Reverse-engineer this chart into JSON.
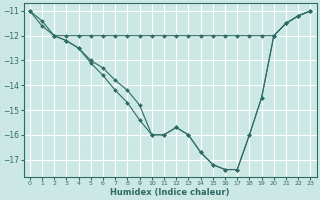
{
  "xlabel": "Humidex (Indice chaleur)",
  "ylabel": "",
  "bg_color": "#cce8e4",
  "grid_color": "#ffffff",
  "line_color": "#2e6b65",
  "xlim": [
    -0.5,
    23.5
  ],
  "ylim": [
    -17.7,
    -10.7
  ],
  "yticks": [
    -17,
    -16,
    -15,
    -14,
    -13,
    -12,
    -11
  ],
  "xticks": [
    0,
    1,
    2,
    3,
    4,
    5,
    6,
    7,
    8,
    9,
    10,
    11,
    12,
    13,
    14,
    15,
    16,
    17,
    18,
    19,
    20,
    21,
    22,
    23
  ],
  "line1_x": [
    0,
    1,
    2,
    3,
    4,
    5,
    6,
    7,
    8,
    9,
    10,
    11,
    12,
    13,
    14,
    15,
    16,
    17,
    18,
    19,
    20,
    21,
    22,
    23
  ],
  "line1_y": [
    -11.0,
    -11.4,
    -12.0,
    -12.0,
    -12.0,
    -12.0,
    -12.0,
    -12.0,
    -12.0,
    -12.0,
    -12.0,
    -12.0,
    -12.0,
    -12.0,
    -12.0,
    -12.0,
    -12.0,
    -12.0,
    -12.0,
    -12.0,
    -12.0,
    -11.5,
    -11.2,
    -11.0
  ],
  "line2_x": [
    0,
    1,
    2,
    3,
    4,
    5,
    6,
    7,
    8,
    9,
    10,
    11,
    12,
    13,
    14,
    15,
    16,
    17,
    18,
    19,
    20,
    21,
    22,
    23
  ],
  "line2_y": [
    -11.0,
    -11.6,
    -12.0,
    -12.2,
    -12.5,
    -13.0,
    -13.3,
    -13.8,
    -14.2,
    -14.8,
    -16.0,
    -16.0,
    -15.7,
    -16.0,
    -16.7,
    -17.2,
    -17.4,
    -17.4,
    -16.0,
    -14.5,
    -12.0,
    -11.5,
    -11.2,
    -11.0
  ],
  "line3_x": [
    2,
    3,
    4,
    5,
    6,
    7,
    8,
    9,
    10,
    11,
    12,
    13,
    14,
    15,
    16,
    17,
    18,
    19,
    20,
    21,
    22,
    23
  ],
  "line3_y": [
    -12.0,
    -12.2,
    -12.5,
    -13.1,
    -13.6,
    -14.2,
    -14.7,
    -15.4,
    -16.0,
    -16.0,
    -15.7,
    -16.0,
    -16.7,
    -17.2,
    -17.4,
    -17.4,
    -16.0,
    -14.5,
    -12.0,
    -11.5,
    -11.2,
    -11.0
  ]
}
